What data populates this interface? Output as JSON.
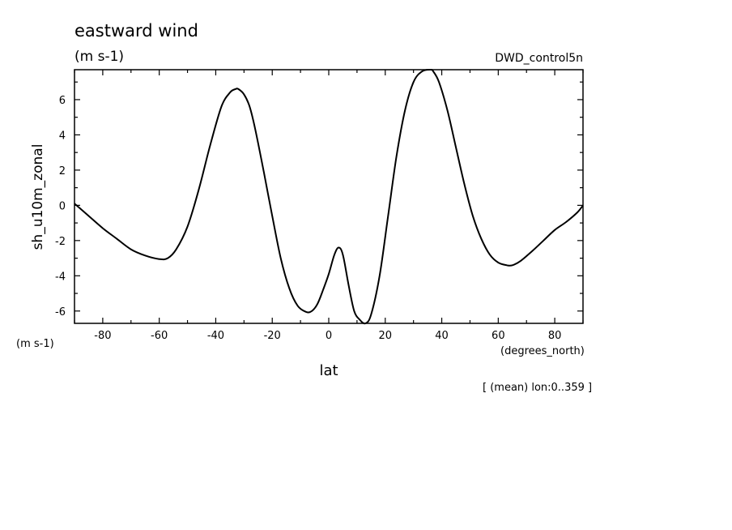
{
  "chart_data": {
    "type": "line",
    "title": "eastward wind",
    "title_units": "(m s-1)",
    "dataset_label": "DWD_control5n",
    "ylabel": "sh_u10m_zonal",
    "ylabel_units": "(m s-1)",
    "xlabel": "lat",
    "xlabel_units": "(degrees_north)",
    "footnote": "[ (mean) lon:0..359 ]",
    "xlim": [
      -90,
      90
    ],
    "ylim": [
      -6.7,
      7.7
    ],
    "x_ticks": [
      "-80",
      "-60",
      "-40",
      "-20",
      "0",
      "20",
      "40",
      "60",
      "80"
    ],
    "y_ticks": [
      "-6",
      "-4",
      "-2",
      "0",
      "2",
      "4",
      "6"
    ],
    "grid": false,
    "series": [
      {
        "color": "#000000",
        "x": [
          -90,
          -85,
          -80,
          -75,
          -70,
          -65,
          -60,
          -57,
          -54,
          -50,
          -46,
          -42,
          -38,
          -35,
          -33,
          -32,
          -30,
          -28,
          -26,
          -23,
          -20,
          -17,
          -14,
          -11,
          -8,
          -6,
          -4,
          -2,
          0,
          2,
          3.5,
          5,
          7,
          9,
          11,
          13,
          15,
          18,
          21,
          24,
          27,
          30,
          33,
          36,
          37,
          39,
          42,
          45,
          48,
          51,
          54,
          57,
          60,
          63,
          65,
          68,
          72,
          76,
          80,
          84,
          88,
          90
        ],
        "y": [
          0.1,
          -0.6,
          -1.3,
          -1.9,
          -2.5,
          -2.85,
          -3.05,
          -3.0,
          -2.5,
          -1.2,
          0.9,
          3.4,
          5.6,
          6.4,
          6.6,
          6.6,
          6.3,
          5.6,
          4.3,
          1.9,
          -0.6,
          -3.0,
          -4.7,
          -5.7,
          -6.05,
          -6.0,
          -5.6,
          -4.8,
          -3.9,
          -2.8,
          -2.4,
          -2.8,
          -4.5,
          -6.0,
          -6.5,
          -6.7,
          -6.2,
          -4.0,
          -0.6,
          2.8,
          5.4,
          7.0,
          7.6,
          7.7,
          7.6,
          7.0,
          5.4,
          3.3,
          1.2,
          -0.6,
          -1.9,
          -2.8,
          -3.25,
          -3.4,
          -3.4,
          -3.15,
          -2.6,
          -2.0,
          -1.4,
          -0.95,
          -0.4,
          0.0
        ]
      }
    ]
  }
}
